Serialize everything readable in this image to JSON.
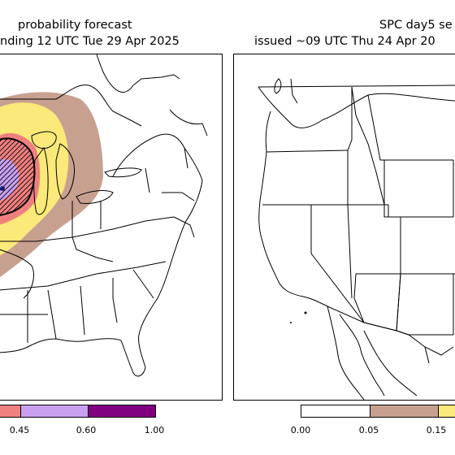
{
  "left_panel": {
    "title_line1": "probability forecast",
    "title_line2": "nding 12 UTC Tue 29 Apr 2025",
    "colorbar": {
      "segments": [
        {
          "from": 0.3,
          "to": 0.45,
          "color": "#f08080"
        },
        {
          "from": 0.45,
          "to": 0.6,
          "color": "#c8a0f0"
        },
        {
          "from": 0.6,
          "to": 1.0,
          "color": "#800080"
        }
      ],
      "tick_labels": [
        "0.45",
        "0.60",
        "1.00"
      ]
    },
    "overlay_colors": {
      "brown": "#c8a090",
      "yellow": "#fbe97a",
      "red": "#f08080",
      "purple": "#c8a0f0",
      "hatch": "#000000"
    }
  },
  "right_panel": {
    "title_line1": "SPC day5 se",
    "title_line2": "issued ~09 UTC Thu 24 Apr 20",
    "colorbar": {
      "segments": [
        {
          "from": 0.0,
          "to": 0.05,
          "color": "#ffffff"
        },
        {
          "from": 0.05,
          "to": 0.15,
          "color": "#c8a090"
        },
        {
          "from": 0.15,
          "to": 0.3,
          "color": "#fbe97a"
        }
      ],
      "tick_labels": [
        "0.00",
        "0.05",
        "0.15"
      ]
    }
  }
}
